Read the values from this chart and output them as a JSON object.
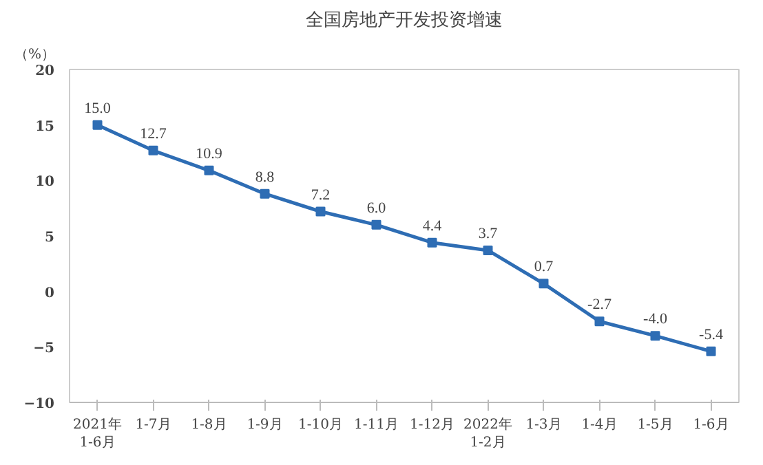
{
  "chart_data": {
    "type": "line",
    "title": "全国房地产开发投资增速",
    "ylabel": "（%）",
    "categories": [
      "2021年\n1-6月",
      "1-7月",
      "1-8月",
      "1-9月",
      "1-10月",
      "1-11月",
      "1-12月",
      "2022年\n1-2月",
      "1-3月",
      "1-4月",
      "1-5月",
      "1-6月"
    ],
    "series": [
      {
        "color": "#2e6db4",
        "values": [
          15.0,
          12.7,
          10.9,
          8.8,
          7.2,
          6.0,
          4.4,
          3.7,
          0.7,
          -2.7,
          -4.0,
          -5.4
        ]
      }
    ],
    "value_labels": [
      "15.0",
      "12.7",
      "10.9",
      "8.8",
      "7.2",
      "6.0",
      "4.4",
      "3.7",
      "0.7",
      "-2.7",
      "-4.0",
      "-5.4"
    ],
    "ylim": [
      -10,
      20
    ],
    "yticks": [
      -10,
      -5,
      0,
      5,
      10,
      15,
      20
    ],
    "grid": false,
    "marker": "square",
    "line_style": "solid"
  }
}
